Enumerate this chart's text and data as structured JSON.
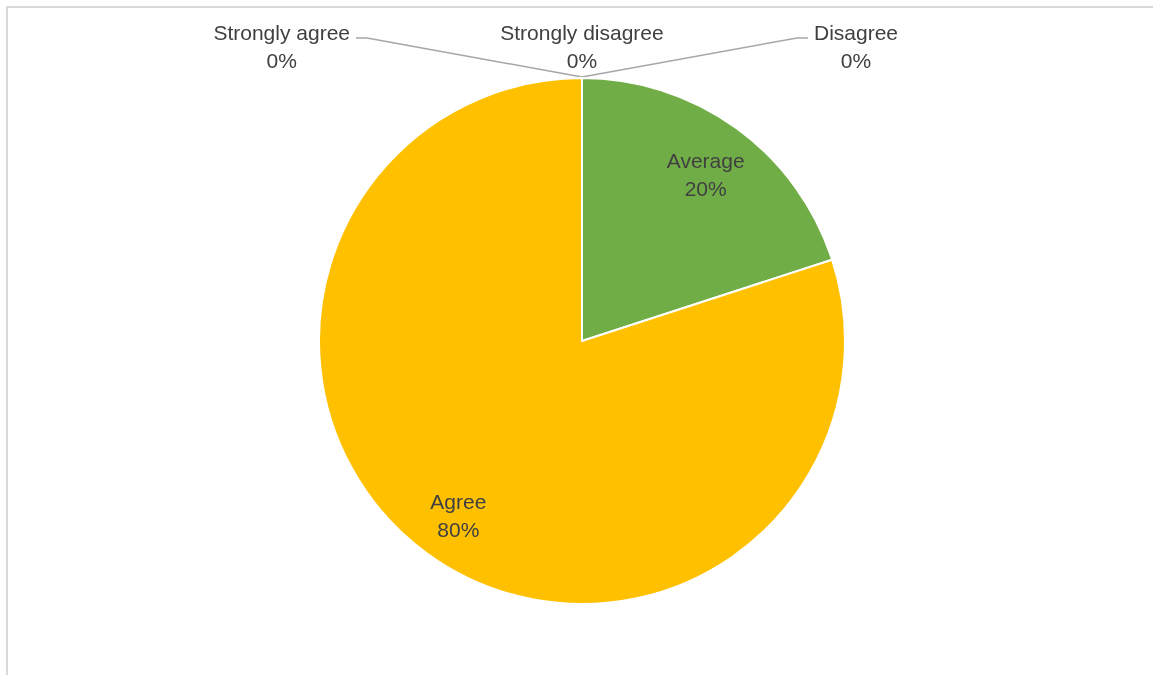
{
  "chart_data": {
    "type": "pie",
    "categories": [
      "Strongly disagree",
      "Disagree",
      "Average",
      "Agree",
      "Strongly agree"
    ],
    "values": [
      0,
      0,
      20,
      80,
      0
    ],
    "colors": [
      "#4472c4",
      "#ed7d31",
      "#70ad47",
      "#ffc000",
      "#5b9bd5"
    ],
    "value_labels": [
      "0%",
      "0%",
      "20%",
      "80%",
      "0%"
    ]
  }
}
